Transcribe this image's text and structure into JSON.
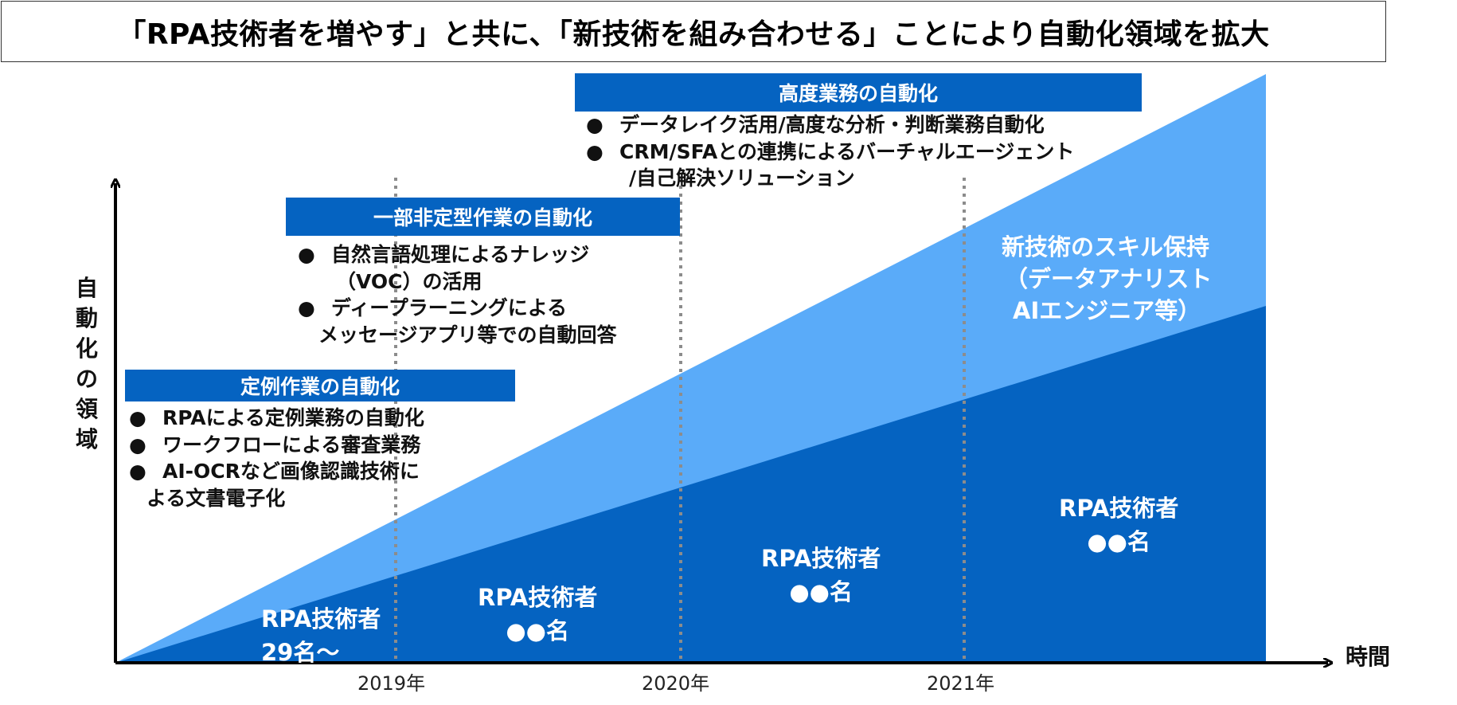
{
  "title": "「RPA技術者を増やす」と共に、「新技術を組み合わせる」ことにより自動化領域を拡大",
  "axis": {
    "y_chars": [
      "自",
      "動",
      "化",
      "の",
      "領",
      "域"
    ],
    "x_label": "時間",
    "years": [
      "2019年",
      "2020年",
      "2021年"
    ]
  },
  "phases": [
    {
      "header": "定例作業の自動化",
      "bullets": [
        {
          "dot": "●",
          "line1": "RPAによる定例業務の自動化",
          "line2": ""
        },
        {
          "dot": "●",
          "line1": "ワークフローによる審査業務",
          "line2": ""
        },
        {
          "dot": "●",
          "line1": "AI-OCRなど画像認識技術に",
          "line2": "よる文書電子化"
        }
      ]
    },
    {
      "header": "一部非定型作業の自動化",
      "bullets": [
        {
          "dot": "●",
          "line1": "自然言語処理によるナレッジ",
          "line2": "（VOC）の活用"
        },
        {
          "dot": "●",
          "line1": "ディープラーニングによる",
          "line2": "メッセージアプリ等での自動回答"
        }
      ]
    },
    {
      "header": "高度業務の自動化",
      "bullets": [
        {
          "dot": "●",
          "line1": "データレイク活用/高度な分析・判断業務自動化",
          "line2": ""
        },
        {
          "dot": "●",
          "line1": "CRM/SFAとの連携によるバーチャルエージェント",
          "line2": "/自己解決ソリューション"
        }
      ]
    }
  ],
  "skill_label": {
    "line1": "新技術のスキル保持",
    "line2": "（データアナリスト",
    "line3": "AIエンジニア等）"
  },
  "rpa_labels": [
    {
      "line1": "RPA技術者",
      "line2": "29名～"
    },
    {
      "line1": "RPA技術者",
      "line2": "●●名"
    },
    {
      "line1": "RPA技術者",
      "line2": "●●名"
    },
    {
      "line1": "RPA技術者",
      "line2": "●●名"
    }
  ],
  "colors": {
    "dark_blue": "#0563c1",
    "light_blue": "#5aabf9",
    "header_blue": "#0563c1",
    "divider_gray": "#8c8c8c"
  }
}
